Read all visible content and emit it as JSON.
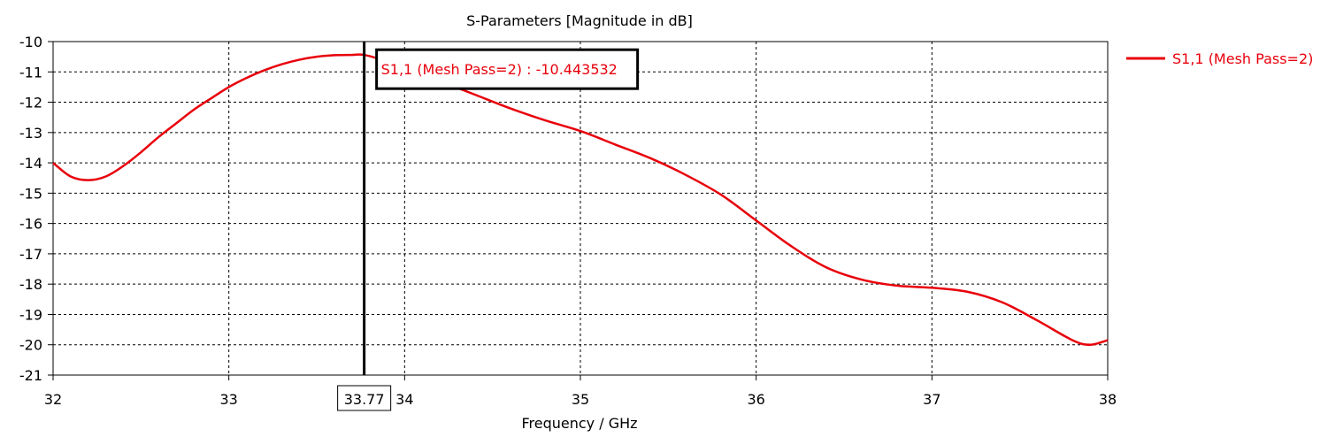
{
  "chart_data": {
    "type": "line",
    "title": "S-Parameters [Magnitude in dB]",
    "xlabel": "Frequency / GHz",
    "ylabel": "",
    "xlim": [
      32,
      38
    ],
    "ylim": [
      -21,
      -10
    ],
    "x_ticks": [
      "32",
      "33",
      "34",
      "35",
      "36",
      "37",
      "38"
    ],
    "y_ticks": [
      "-10",
      "-11",
      "-12",
      "-13",
      "-14",
      "-15",
      "-16",
      "-17",
      "-18",
      "-19",
      "-20",
      "-21"
    ],
    "grid": true,
    "legend_position": "right",
    "series": [
      {
        "name": "S1,1 (Mesh Pass=2)",
        "color": "#e8000b",
        "x": [
          32.0,
          32.1,
          32.2,
          32.3,
          32.4,
          32.5,
          32.6,
          32.7,
          32.8,
          32.9,
          33.0,
          33.1,
          33.2,
          33.3,
          33.4,
          33.5,
          33.6,
          33.7,
          33.77,
          33.9,
          34.0,
          34.2,
          34.4,
          34.6,
          34.8,
          35.0,
          35.2,
          35.4,
          35.6,
          35.8,
          36.0,
          36.2,
          36.4,
          36.6,
          36.8,
          37.0,
          37.2,
          37.4,
          37.6,
          37.8,
          37.9,
          38.0
        ],
        "y": [
          -14.0,
          -14.45,
          -14.57,
          -14.45,
          -14.1,
          -13.65,
          -13.15,
          -12.7,
          -12.25,
          -11.87,
          -11.5,
          -11.2,
          -10.95,
          -10.75,
          -10.6,
          -10.5,
          -10.45,
          -10.44,
          -10.44,
          -10.65,
          -10.85,
          -11.3,
          -11.75,
          -12.2,
          -12.6,
          -12.95,
          -13.4,
          -13.85,
          -14.4,
          -15.05,
          -15.9,
          -16.75,
          -17.45,
          -17.85,
          -18.05,
          -18.12,
          -18.25,
          -18.6,
          -19.2,
          -19.85,
          -20.0,
          -19.85
        ]
      }
    ],
    "marker": {
      "x": 33.77,
      "x_label": "33.77",
      "label": "S1,1 (Mesh Pass=2) : -10.443532",
      "value": -10.443532
    }
  }
}
